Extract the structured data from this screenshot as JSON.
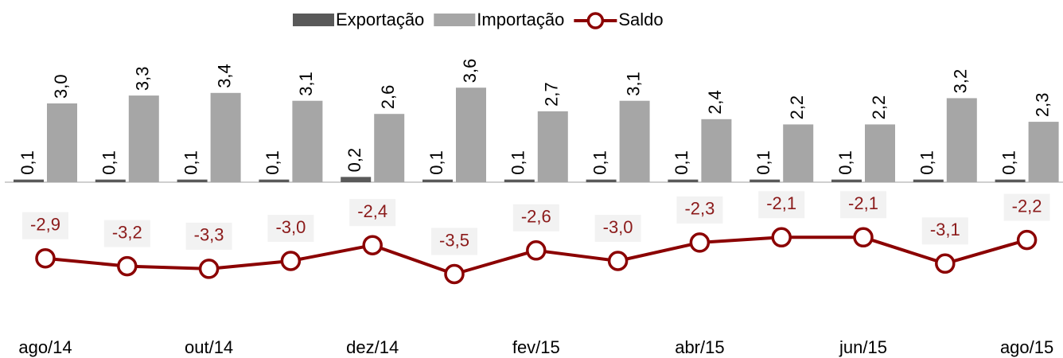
{
  "chart_data": {
    "type": "bar_line",
    "categories": [
      "ago/14",
      null,
      "out/14",
      null,
      "dez/14",
      null,
      "fev/15",
      null,
      "abr/15",
      null,
      "jun/15",
      null,
      "ago/15"
    ],
    "ylim": [
      -6,
      4
    ],
    "series": [
      {
        "name": "Exportação",
        "type": "bar",
        "color": "#595959",
        "values": [
          0.1,
          0.1,
          0.1,
          0.1,
          0.2,
          0.1,
          0.1,
          0.1,
          0.1,
          0.1,
          0.1,
          0.1,
          0.1
        ],
        "value_labels": [
          "0,1",
          "0,1",
          "0,1",
          "0,1",
          "0,2",
          "0,1",
          "0,1",
          "0,1",
          "0,1",
          "0,1",
          "0,1",
          "0,1",
          "0,1"
        ]
      },
      {
        "name": "Importação",
        "type": "bar",
        "color": "#a6a6a6",
        "values": [
          3.0,
          3.3,
          3.4,
          3.1,
          2.6,
          3.6,
          2.7,
          3.1,
          2.4,
          2.2,
          2.2,
          3.2,
          2.3
        ],
        "value_labels": [
          "3,0",
          "3,3",
          "3,4",
          "3,1",
          "2,6",
          "3,6",
          "2,7",
          "3,1",
          "2,4",
          "2,2",
          "2,2",
          "3,2",
          "2,3"
        ]
      },
      {
        "name": "Saldo",
        "type": "line",
        "color": "#8b0000",
        "values": [
          -2.9,
          -3.2,
          -3.3,
          -3.0,
          -2.4,
          -3.5,
          -2.6,
          -3.0,
          -2.3,
          -2.1,
          -2.1,
          -3.1,
          -2.2
        ],
        "value_labels": [
          "-2,9",
          "-3,2",
          "-3,3",
          "-3,0",
          "-2,4",
          "-3,5",
          "-2,6",
          "-3,0",
          "-2,3",
          "-2,1",
          "-2,1",
          "-3,1",
          "-2,2"
        ]
      }
    ]
  }
}
